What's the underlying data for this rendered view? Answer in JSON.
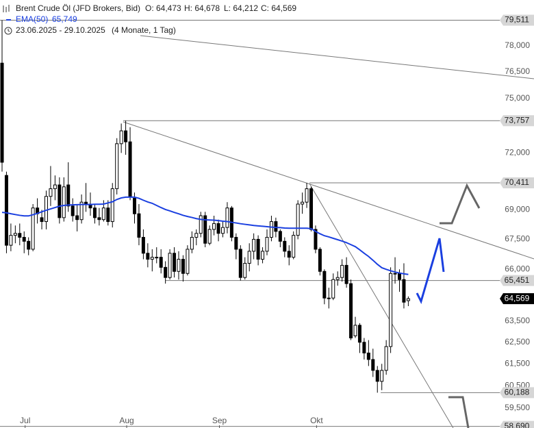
{
  "chart_data": {
    "type": "candlestick",
    "title": "Brent Crude Öl (JFD Brokers, Bid)",
    "ohlc_texts": [
      "O: 64,473",
      "H: 64,678",
      "L: 64,212",
      "C: 64,569"
    ],
    "date_range": "23.06.2025 - 29.10.2025",
    "range_note": "(4 Monate, 1 Tag)",
    "log_scale": true,
    "ylim": [
      58.62,
      80.72
    ],
    "yticks": [
      {
        "value": 59.5,
        "label": "59,500"
      },
      {
        "value": 60.5,
        "label": "60,500"
      },
      {
        "value": 61.5,
        "label": "61,500"
      },
      {
        "value": 62.5,
        "label": "62,500"
      },
      {
        "value": 63.5,
        "label": "63,500"
      },
      {
        "value": 66,
        "label": "66,000"
      },
      {
        "value": 67.5,
        "label": "67,500"
      },
      {
        "value": 69,
        "label": "69,000"
      },
      {
        "value": 72,
        "label": "72,000"
      },
      {
        "value": 75,
        "label": "75,000"
      },
      {
        "value": 76.5,
        "label": "76,500"
      },
      {
        "value": 78,
        "label": "78,000"
      }
    ],
    "categories": [
      null,
      null,
      null,
      null,
      null,
      null,
      "Jul",
      null,
      null,
      null,
      null,
      null,
      null,
      null,
      null,
      null,
      null,
      null,
      null,
      null,
      null,
      null,
      null,
      null,
      null,
      null,
      null,
      null,
      null,
      "Aug",
      null,
      null,
      null,
      null,
      null,
      null,
      null,
      null,
      null,
      null,
      null,
      null,
      null,
      null,
      null,
      null,
      null,
      null,
      null,
      null,
      "Sep",
      null,
      null,
      null,
      null,
      null,
      null,
      null,
      null,
      null,
      null,
      null,
      null,
      null,
      null,
      null,
      null,
      null,
      null,
      null,
      null,
      null,
      "Okt",
      null,
      null,
      null,
      null,
      null,
      null,
      null,
      null,
      null,
      null,
      null,
      null,
      null,
      null,
      null,
      null,
      null,
      null,
      null,
      null
    ],
    "open": [
      77.0,
      70.8,
      67.2,
      67.7,
      67.8,
      67.6,
      67.4,
      67.0,
      69.1,
      68.6,
      68.4,
      69.7,
      70.1,
      70.3,
      68.6,
      70.3,
      69.2,
      68.7,
      68.5,
      69.4,
      69.3,
      69.1,
      68.6,
      68.5,
      69.1,
      68.4,
      70.1,
      72.5,
      73.2,
      72.6,
      69.6,
      68.8,
      67.6,
      66.8,
      66.5,
      66.6,
      66.6,
      66.1,
      65.6,
      66.8,
      65.9,
      66.5,
      65.8,
      67.0,
      67.6,
      67.8,
      68.7,
      67.3,
      68.0,
      68.3,
      67.8,
      68.1,
      69.1,
      67.6,
      67.0,
      65.6,
      66.3,
      66.9,
      67.5,
      66.5,
      66.9,
      67.6,
      68.4,
      67.9,
      67.4,
      66.9,
      66.6,
      67.7,
      69.3,
      69.4,
      70.1,
      68.0,
      67.0,
      65.9,
      64.6,
      64.6,
      65.5,
      65.6,
      66.2,
      65.3,
      62.8,
      63.3,
      62.5,
      62.0,
      61.7,
      61.2,
      60.7,
      61.2,
      62.3,
      65.8,
      65.8,
      65.5,
      64.473
    ],
    "high": [
      79.511,
      71.0,
      68.3,
      68.2,
      68.3,
      67.9,
      67.6,
      69.3,
      69.6,
      69.0,
      70.0,
      71.3,
      70.8,
      70.7,
      70.7,
      71.5,
      69.6,
      69.3,
      69.8,
      70.4,
      69.9,
      69.3,
      69.1,
      69.5,
      69.5,
      70.4,
      72.8,
      73.6,
      73.757,
      73.4,
      69.9,
      69.3,
      68.0,
      67.3,
      67.0,
      67.1,
      67.0,
      66.4,
      67.0,
      67.1,
      66.9,
      66.7,
      67.2,
      67.9,
      68.0,
      68.9,
      68.9,
      68.2,
      68.7,
      68.5,
      68.4,
      69.4,
      69.2,
      67.8,
      67.2,
      66.6,
      67.3,
      67.8,
      67.7,
      67.1,
      68.0,
      68.7,
      68.6,
      68.0,
      67.6,
      67.2,
      67.9,
      69.5,
      69.9,
      70.411,
      70.2,
      68.2,
      67.1,
      66.0,
      65.1,
      65.8,
      65.9,
      66.5,
      66.6,
      65.5,
      63.7,
      63.4,
      62.7,
      62.6,
      62.2,
      61.4,
      61.5,
      62.6,
      66.1,
      66.6,
      66.0,
      66.3,
      64.678
    ],
    "low": [
      71.0,
      66.8,
      66.9,
      67.3,
      67.2,
      66.8,
      66.7,
      66.9,
      68.3,
      68.0,
      68.0,
      69.2,
      69.5,
      68.3,
      68.4,
      68.9,
      68.4,
      67.9,
      68.3,
      68.9,
      68.7,
      68.3,
      68.2,
      68.4,
      68.2,
      68.1,
      69.8,
      72.0,
      71.9,
      69.5,
      68.3,
      67.2,
      66.5,
      66.1,
      65.9,
      66.3,
      65.8,
      65.3,
      65.5,
      65.6,
      65.5,
      65.4,
      65.7,
      66.8,
      67.2,
      67.6,
      67.1,
      67.2,
      67.7,
      67.4,
      67.6,
      67.8,
      67.4,
      66.5,
      65.451,
      65.5,
      65.9,
      66.5,
      66.2,
      66.3,
      66.7,
      67.4,
      67.6,
      67.1,
      66.6,
      66.2,
      66.5,
      67.5,
      68.8,
      69.1,
      67.9,
      66.8,
      65.7,
      64.3,
      64.1,
      64.5,
      65.2,
      65.4,
      65.1,
      62.6,
      62.7,
      62.0,
      61.7,
      61.4,
      60.9,
      60.188,
      60.3,
      61.0,
      62.0,
      65.3,
      64.9,
      64.1,
      64.212
    ],
    "close": [
      71.5,
      67.2,
      67.7,
      67.8,
      67.6,
      67.4,
      67.0,
      69.1,
      68.8,
      68.4,
      69.7,
      70.1,
      70.3,
      68.6,
      70.2,
      69.2,
      68.7,
      68.5,
      69.4,
      69.3,
      69.1,
      68.6,
      68.5,
      69.1,
      68.4,
      70.1,
      72.5,
      73.2,
      72.6,
      69.7,
      68.8,
      67.6,
      66.8,
      66.5,
      66.6,
      66.6,
      66.1,
      65.6,
      66.8,
      65.9,
      66.5,
      65.8,
      67.0,
      67.6,
      67.8,
      68.7,
      67.3,
      68.0,
      68.3,
      67.8,
      68.1,
      69.1,
      67.6,
      67.0,
      65.6,
      66.3,
      66.9,
      67.5,
      66.5,
      66.9,
      67.6,
      68.4,
      67.9,
      67.4,
      66.9,
      66.6,
      67.7,
      69.3,
      69.4,
      70.1,
      68.0,
      67.0,
      65.9,
      64.6,
      64.6,
      65.5,
      65.6,
      66.2,
      65.3,
      62.7,
      63.3,
      62.5,
      62.0,
      61.7,
      61.2,
      60.7,
      61.2,
      62.3,
      65.8,
      65.8,
      65.5,
      64.4,
      64.569
    ],
    "up_color": "#ffffff",
    "down_color": "#000000",
    "ema": {
      "name": "EMA(50)",
      "color": "#1a3fe0",
      "last_label": "65,749",
      "values": [
        68.87,
        68.85,
        68.8,
        68.76,
        68.72,
        68.69,
        68.69,
        68.75,
        68.82,
        68.9,
        68.98,
        69.05,
        69.12,
        69.19,
        69.23,
        69.25,
        69.26,
        69.27,
        69.28,
        69.28,
        69.28,
        69.29,
        69.29,
        69.3,
        69.36,
        69.42,
        69.54,
        69.62,
        69.66,
        69.66,
        69.66,
        69.6,
        69.5,
        69.41,
        69.34,
        69.23,
        69.12,
        69.02,
        68.95,
        68.87,
        68.8,
        68.72,
        68.66,
        68.61,
        68.55,
        68.51,
        68.49,
        68.48,
        68.47,
        68.45,
        68.42,
        68.4,
        68.36,
        68.33,
        68.29,
        68.26,
        68.23,
        68.2,
        68.18,
        68.16,
        68.14,
        68.12,
        68.1,
        68.09,
        68.07,
        68.06,
        68.06,
        68.06,
        68.06,
        68.06,
        68.04,
        67.9,
        67.78,
        67.68,
        67.62,
        67.55,
        67.48,
        67.41,
        67.33,
        67.23,
        67.13,
        66.97,
        66.8,
        66.64,
        66.45,
        66.25,
        66.08,
        66.0,
        65.93,
        65.87,
        65.82,
        65.78,
        65.749
      ]
    },
    "levels": [
      {
        "value": 79.511,
        "label": "79,511"
      },
      {
        "value": 73.757,
        "label": "73,757"
      },
      {
        "value": 70.411,
        "label": "70,411"
      },
      {
        "value": 65.451,
        "label": "65,451"
      },
      {
        "value": 60.188,
        "label": "60,188"
      },
      {
        "value": 58.69,
        "label": "58,690"
      }
    ],
    "last_price": {
      "value": 64.569,
      "label": "64,569"
    }
  }
}
